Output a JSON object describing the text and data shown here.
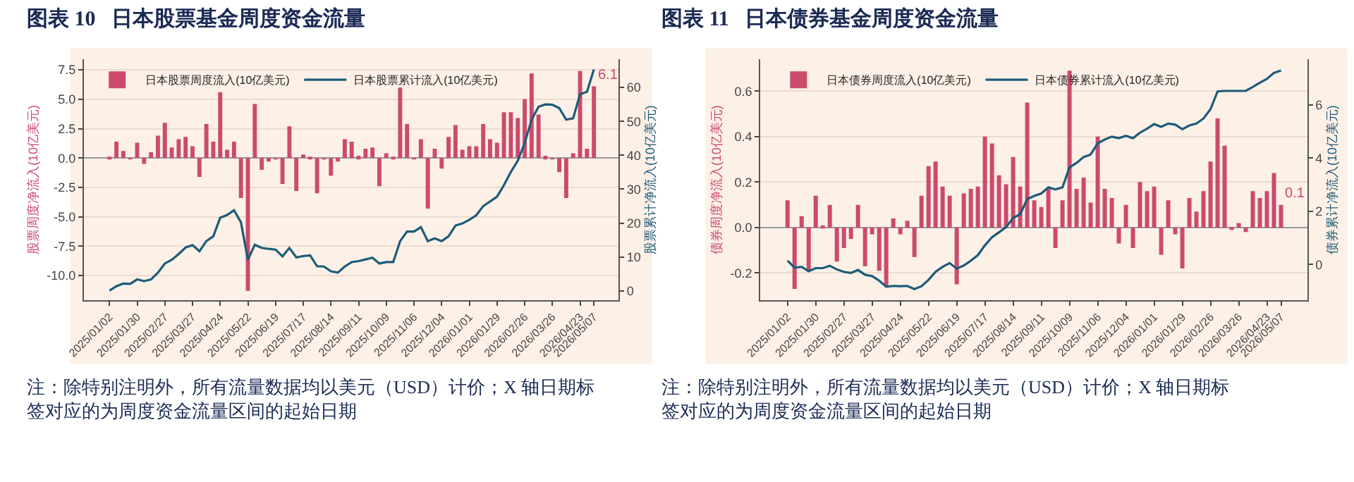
{
  "chart_data": [
    {
      "type": "bar",
      "title": "图表 10   日本股票基金周度资金流量",
      "ylabel": "股票周度净流入(10亿美元)",
      "y2label": "股票累计净流入(10亿美元)",
      "annotations": [
        "注：除特别注明外，所有流量数据均以美元（USD）计价；X 轴日期标签对应的为周度资金流量区间的起始日期"
      ],
      "x": [
        "2025-01-02",
        "2025-01-09",
        "2025-01-16",
        "2025-01-23",
        "2025-01-30",
        "2025-02-06",
        "2025-02-13",
        "2025-02-20",
        "2025-02-27",
        "2025-03-06",
        "2025-03-13",
        "2025-03-20",
        "2025-03-27",
        "2025-04-03",
        "2025-04-10",
        "2025-04-17",
        "2025-04-24",
        "2025-05-01",
        "2025-05-08",
        "2025-05-15",
        "2025-05-22",
        "2025-05-29",
        "2025-06-05",
        "2025-06-12",
        "2025-06-19",
        "2025-06-26",
        "2025-07-03",
        "2025-07-10",
        "2025-07-17",
        "2025-07-24",
        "2025-07-31",
        "2025-08-07",
        "2025-08-14",
        "2025-08-21",
        "2025-08-28",
        "2025-09-04",
        "2025-09-11",
        "2025-09-18",
        "2025-09-25",
        "2025-10-02",
        "2025-10-09",
        "2025-10-16",
        "2025-10-23",
        "2025-10-30",
        "2025-11-06",
        "2025-11-13",
        "2025-11-20",
        "2025-11-27",
        "2025-12-04",
        "2025-12-11",
        "2025-12-18",
        "2025-12-25",
        "2026-01-01",
        "2026-01-08",
        "2026-01-15",
        "2026-01-22",
        "2026-01-29",
        "2026-02-05",
        "2026-02-12",
        "2026-02-19",
        "2026-02-26",
        "2026-03-05",
        "2026-03-12",
        "2026-03-19",
        "2026-03-26",
        "2026-04-02",
        "2026-04-09",
        "2026-04-16",
        "2026-04-23",
        "2026-04-30",
        "2026-05-07"
      ],
      "xlim": [
        "2024-12-07",
        "2026-06-01"
      ],
      "xticks": [
        {
          "value": "2025-01-02",
          "label": "2025/01/02"
        },
        {
          "value": "2025-01-30",
          "label": "2025/01/30"
        },
        {
          "value": "2025-02-27",
          "label": "2025/02/27"
        },
        {
          "value": "2025-03-27",
          "label": "2025/03/27"
        },
        {
          "value": "2025-04-24",
          "label": "2025/04/24"
        },
        {
          "value": "2025-05-22",
          "label": "2025/05/22"
        },
        {
          "value": "2025-06-19",
          "label": "2025/06/19"
        },
        {
          "value": "2025-07-17",
          "label": "2025/07/17"
        },
        {
          "value": "2025-08-14",
          "label": "2025/08/14"
        },
        {
          "value": "2025-09-11",
          "label": "2025/09/11"
        },
        {
          "value": "2025-10-09",
          "label": "2025/10/09"
        },
        {
          "value": "2025-11-06",
          "label": "2025/11/06"
        },
        {
          "value": "2025-12-04",
          "label": "2025/12/04"
        },
        {
          "value": "2026-01-01",
          "label": "2026/01/01"
        },
        {
          "value": "2026-01-29",
          "label": "2026/01/29"
        },
        {
          "value": "2026-02-26",
          "label": "2026/02/26"
        },
        {
          "value": "2026-03-26",
          "label": "2026/03/26"
        },
        {
          "value": "2026-04-23",
          "label": "2026/04/23"
        },
        {
          "value": "2026-05-07",
          "label": "2026/05/07"
        }
      ],
      "ylim": [
        -12.1,
        8.4
      ],
      "yticks": [
        {
          "value": -10,
          "label": "-10.0"
        },
        -7.5,
        {
          "value": -5,
          "label": "-5.0"
        },
        -2.5,
        {
          "value": 0,
          "label": "0.0"
        },
        2.5,
        {
          "value": 5,
          "label": "5.0"
        },
        7.5
      ],
      "y2lim": [
        -2.75,
        68.3
      ],
      "y2ticks": [
        0,
        10,
        20,
        30,
        40,
        50,
        60
      ],
      "grid": "y",
      "legend": "top",
      "series": [
        {
          "name": "日本股票周度流入(10亿美元)",
          "color": "#cc4a6c",
          "values": [
            0.1,
            1.4,
            0.6,
            -0.1,
            1.3,
            -0.5,
            0.5,
            1.9,
            3.0,
            0.9,
            1.6,
            1.8,
            1.0,
            -1.6,
            2.9,
            1.4,
            5.6,
            0.7,
            1.4,
            -3.4,
            -11.3,
            4.6,
            -1.0,
            -0.3,
            -0.1,
            -2.2,
            2.7,
            -2.8,
            0.3,
            0.1,
            -3.0,
            -0.1,
            -1.5,
            -0.3,
            1.6,
            1.4,
            0.2,
            0.8,
            0.9,
            -2.4,
            0.4,
            0.1,
            6.0,
            2.9,
            -0.1,
            1.6,
            -4.3,
            0.8,
            -0.9,
            1.8,
            2.8,
            0.7,
            1.0,
            1.0,
            2.9,
            1.6,
            1.3,
            3.9,
            3.9,
            3.4,
            5.0,
            7.2,
            3.7,
            0.2,
            -0.1,
            -1.2,
            -3.4,
            0.4,
            7.4,
            0.8,
            6.1
          ],
          "value_labels": [
            null,
            null,
            null,
            null,
            null,
            null,
            null,
            null,
            null,
            null,
            null,
            null,
            null,
            null,
            null,
            null,
            null,
            null,
            null,
            null,
            null,
            null,
            null,
            null,
            null,
            null,
            null,
            null,
            null,
            null,
            null,
            null,
            null,
            null,
            null,
            null,
            null,
            null,
            null,
            null,
            null,
            null,
            null,
            null,
            null,
            null,
            null,
            null,
            null,
            null,
            null,
            null,
            null,
            null,
            null,
            null,
            null,
            null,
            null,
            null,
            null,
            null,
            null,
            null,
            null,
            null,
            null,
            null,
            null,
            null,
            "6.1"
          ]
        },
        {
          "name": "日本股票累计流入(10亿美元)",
          "type": "line",
          "axis": "y2",
          "color": "#1d5b7a",
          "values": [
            0.1,
            1.4,
            2.2,
            2.1,
            3.4,
            2.9,
            3.4,
            5.4,
            8.1,
            9.2,
            10.9,
            12.8,
            13.5,
            11.7,
            14.7,
            16.1,
            21.6,
            22.4,
            23.8,
            20.2,
            9.2,
            13.6,
            12.7,
            12.4,
            12.2,
            10.2,
            12.7,
            9.9,
            10.3,
            10.5,
            7.3,
            7.2,
            5.8,
            5.4,
            7.2,
            8.5,
            8.8,
            9.3,
            9.8,
            8.1,
            8.5,
            8.5,
            14.7,
            17.5,
            17.5,
            18.8,
            14.7,
            15.5,
            14.7,
            16.1,
            19.3,
            19.9,
            21.0,
            22.3,
            25.0,
            26.4,
            27.8,
            31.2,
            35.1,
            38.4,
            43.6,
            50.5,
            54.3,
            55.0,
            54.9,
            53.9,
            50.5,
            50.9,
            58.0,
            58.7,
            65.3
          ]
        }
      ]
    },
    {
      "type": "bar",
      "title": "图表 11   日本债券基金周度资金流量",
      "ylabel": "债券周度净流入(10亿美元)",
      "y2label": "债券累计净流入(10亿美元)",
      "annotations": [
        "注：除特别注明外，所有流量数据均以美元（USD）计价；X 轴日期标签对应的为周度资金流量区间的起始日期"
      ],
      "x": [
        "2025-01-02",
        "2025-01-09",
        "2025-01-16",
        "2025-01-23",
        "2025-01-30",
        "2025-02-06",
        "2025-02-13",
        "2025-02-20",
        "2025-02-27",
        "2025-03-06",
        "2025-03-13",
        "2025-03-20",
        "2025-03-27",
        "2025-04-03",
        "2025-04-10",
        "2025-04-17",
        "2025-04-24",
        "2025-05-01",
        "2025-05-08",
        "2025-05-15",
        "2025-05-22",
        "2025-05-29",
        "2025-06-05",
        "2025-06-12",
        "2025-06-19",
        "2025-06-26",
        "2025-07-03",
        "2025-07-10",
        "2025-07-17",
        "2025-07-24",
        "2025-07-31",
        "2025-08-07",
        "2025-08-14",
        "2025-08-21",
        "2025-08-28",
        "2025-09-04",
        "2025-09-11",
        "2025-09-18",
        "2025-09-25",
        "2025-10-02",
        "2025-10-09",
        "2025-10-16",
        "2025-10-23",
        "2025-10-30",
        "2025-11-06",
        "2025-11-13",
        "2025-11-20",
        "2025-11-27",
        "2025-12-04",
        "2025-12-11",
        "2025-12-18",
        "2025-12-25",
        "2026-01-01",
        "2026-01-08",
        "2026-01-15",
        "2026-01-22",
        "2026-01-29",
        "2026-02-05",
        "2026-02-12",
        "2026-02-19",
        "2026-02-26",
        "2026-03-05",
        "2026-03-12",
        "2026-03-19",
        "2026-03-26",
        "2026-04-02",
        "2026-04-09",
        "2026-04-16",
        "2026-04-23",
        "2026-04-30",
        "2026-05-07"
      ],
      "xlim": [
        "2024-12-06",
        "2026-06-02"
      ],
      "xticks": [
        {
          "value": "2025-01-02",
          "label": "2025/01/02"
        },
        {
          "value": "2025-01-30",
          "label": "2025/01/30"
        },
        {
          "value": "2025-02-27",
          "label": "2025/02/27"
        },
        {
          "value": "2025-03-27",
          "label": "2025/03/27"
        },
        {
          "value": "2025-04-24",
          "label": "2025/04/24"
        },
        {
          "value": "2025-05-22",
          "label": "2025/05/22"
        },
        {
          "value": "2025-06-19",
          "label": "2025/06/19"
        },
        {
          "value": "2025-07-17",
          "label": "2025/07/17"
        },
        {
          "value": "2025-08-14",
          "label": "2025/08/14"
        },
        {
          "value": "2025-09-11",
          "label": "2025/09/11"
        },
        {
          "value": "2025-10-09",
          "label": "2025/10/09"
        },
        {
          "value": "2025-11-06",
          "label": "2025/11/06"
        },
        {
          "value": "2025-12-04",
          "label": "2025/12/04"
        },
        {
          "value": "2026-01-01",
          "label": "2026/01/01"
        },
        {
          "value": "2026-01-29",
          "label": "2026/01/29"
        },
        {
          "value": "2026-02-26",
          "label": "2026/02/26"
        },
        {
          "value": "2026-03-26",
          "label": "2026/03/26"
        },
        {
          "value": "2026-04-23",
          "label": "2026/04/23"
        },
        {
          "value": "2026-05-07",
          "label": "2026/05/07"
        }
      ],
      "ylim": [
        -0.32,
        0.74
      ],
      "yticks": [
        -0.2,
        {
          "value": 0,
          "label": "0.0"
        },
        0.2,
        0.4,
        0.6
      ],
      "y2lim": [
        -1.35,
        7.72
      ],
      "y2ticks": [
        0,
        2,
        4,
        6
      ],
      "grid": "y",
      "legend": "top",
      "series": [
        {
          "name": "日本债券周度流入(10亿美元)",
          "color": "#cc4a6c",
          "values": [
            0.12,
            -0.27,
            0.05,
            -0.19,
            0.14,
            0.01,
            0.1,
            -0.15,
            -0.09,
            -0.05,
            0.1,
            -0.17,
            -0.03,
            -0.19,
            -0.26,
            0.04,
            -0.03,
            0.03,
            -0.13,
            0.14,
            0.27,
            0.29,
            0.18,
            0.14,
            -0.25,
            0.15,
            0.17,
            0.18,
            0.4,
            0.37,
            0.23,
            0.19,
            0.31,
            0.18,
            0.55,
            0.12,
            0.09,
            0.17,
            -0.09,
            0.12,
            0.69,
            0.17,
            0.22,
            0.11,
            0.4,
            0.17,
            0.13,
            -0.07,
            0.1,
            -0.09,
            0.2,
            0.16,
            0.18,
            -0.12,
            0.12,
            -0.03,
            -0.18,
            0.13,
            0.07,
            0.16,
            0.29,
            0.48,
            0.36,
            -0.01,
            0.02,
            -0.02,
            0.16,
            0.13,
            0.16,
            0.24,
            0.1
          ],
          "value_labels": [
            null,
            null,
            null,
            null,
            null,
            null,
            null,
            null,
            null,
            null,
            null,
            null,
            null,
            null,
            null,
            null,
            null,
            null,
            null,
            null,
            null,
            null,
            null,
            null,
            null,
            null,
            null,
            null,
            null,
            null,
            null,
            null,
            null,
            null,
            null,
            null,
            null,
            null,
            null,
            null,
            null,
            null,
            null,
            null,
            null,
            null,
            null,
            null,
            null,
            null,
            null,
            null,
            null,
            null,
            null,
            null,
            null,
            null,
            null,
            null,
            null,
            null,
            null,
            null,
            null,
            null,
            null,
            null,
            null,
            null,
            "0.1"
          ]
        },
        {
          "name": "日本债券累计流入(10亿美元)",
          "type": "line",
          "axis": "y2",
          "color": "#1d5b7a",
          "values": [
            0.14,
            -0.12,
            -0.09,
            -0.26,
            -0.14,
            -0.14,
            -0.05,
            -0.19,
            -0.28,
            -0.32,
            -0.21,
            -0.39,
            -0.44,
            -0.61,
            -0.84,
            -0.81,
            -0.82,
            -0.81,
            -0.93,
            -0.82,
            -0.58,
            -0.28,
            -0.09,
            0.05,
            -0.16,
            -0.04,
            0.14,
            0.35,
            0.72,
            1.02,
            1.21,
            1.4,
            1.75,
            1.89,
            2.46,
            2.58,
            2.67,
            2.9,
            2.82,
            2.9,
            3.65,
            3.82,
            4.04,
            4.14,
            4.56,
            4.7,
            4.81,
            4.75,
            4.84,
            4.75,
            4.96,
            5.11,
            5.28,
            5.18,
            5.3,
            5.26,
            5.09,
            5.23,
            5.3,
            5.49,
            5.84,
            6.51,
            6.53,
            6.53,
            6.53,
            6.53,
            6.68,
            6.84,
            6.98,
            7.21,
            7.3
          ]
        }
      ]
    }
  ]
}
